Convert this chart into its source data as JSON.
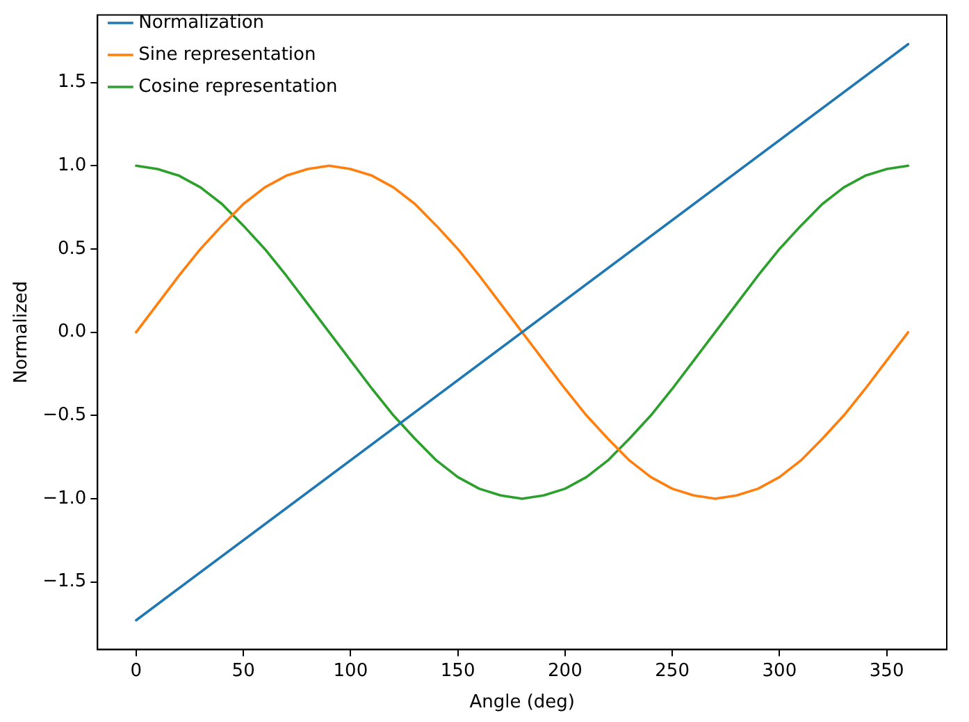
{
  "chart_data": {
    "type": "line",
    "xlabel": "Angle (deg)",
    "ylabel": "Normalized",
    "x": [
      0,
      10,
      20,
      30,
      40,
      50,
      60,
      70,
      80,
      90,
      100,
      110,
      120,
      130,
      140,
      150,
      160,
      170,
      180,
      190,
      200,
      210,
      220,
      230,
      240,
      250,
      260,
      270,
      280,
      290,
      300,
      310,
      320,
      330,
      340,
      350,
      360
    ],
    "series": [
      {
        "name": "Normalization",
        "color": "#1f77b4",
        "x": [
          0,
          360
        ],
        "values": [
          -1.73,
          1.73
        ]
      },
      {
        "name": "Sine representation",
        "color": "#ff7f0e",
        "values": [
          0,
          0.17,
          0.34,
          0.5,
          0.64,
          0.77,
          0.87,
          0.94,
          0.98,
          1,
          0.98,
          0.94,
          0.87,
          0.77,
          0.64,
          0.5,
          0.34,
          0.17,
          0,
          -0.17,
          -0.34,
          -0.5,
          -0.64,
          -0.77,
          -0.87,
          -0.94,
          -0.98,
          -1,
          -0.98,
          -0.94,
          -0.87,
          -0.77,
          -0.64,
          -0.5,
          -0.34,
          -0.17,
          0
        ]
      },
      {
        "name": "Cosine representation",
        "color": "#2ca02c",
        "values": [
          1,
          0.98,
          0.94,
          0.87,
          0.77,
          0.64,
          0.5,
          0.34,
          0.17,
          0,
          -0.17,
          -0.34,
          -0.5,
          -0.64,
          -0.77,
          -0.87,
          -0.94,
          -0.98,
          -1,
          -0.98,
          -0.94,
          -0.87,
          -0.77,
          -0.64,
          -0.5,
          -0.34,
          -0.17,
          0,
          0.17,
          0.34,
          0.5,
          0.64,
          0.77,
          0.87,
          0.94,
          0.98,
          1
        ]
      }
    ],
    "xlim": [
      -18,
      378
    ],
    "xticks": [
      0,
      50,
      100,
      150,
      200,
      250,
      300,
      350
    ],
    "ylim": [
      -1.905,
      1.905
    ],
    "yticks": [
      {
        "value": -1.5,
        "label": "−1.5"
      },
      {
        "value": -1.0,
        "label": "−1.0"
      },
      {
        "value": -0.5,
        "label": "−0.5"
      },
      {
        "value": 0,
        "label": "0.0"
      },
      {
        "value": 0.5,
        "label": "0.5"
      },
      {
        "value": 1.0,
        "label": "1.0"
      },
      {
        "value": 1.5,
        "label": "1.5"
      }
    ],
    "grid": false,
    "legend": "top left",
    "marker": "none",
    "line_style": "solid"
  }
}
